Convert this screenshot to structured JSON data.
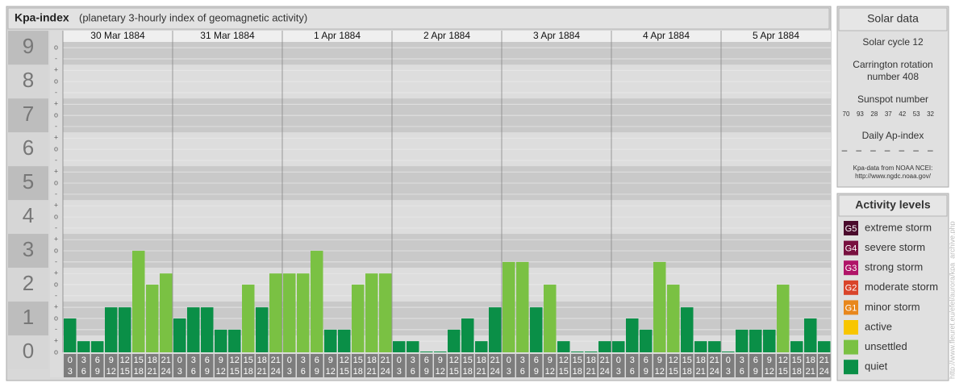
{
  "chart_data": {
    "type": "bar",
    "title": "Kpa-index",
    "subtitle": "(planetary 3-hourly index of geomagnetic activity)",
    "days": [
      "30 Mar 1884",
      "31 Mar 1884",
      "1 Apr 1884",
      "2 Apr 1884",
      "3 Apr 1884",
      "4 Apr 1884",
      "5 Apr 1884"
    ],
    "intervals": [
      [
        0,
        3
      ],
      [
        3,
        6
      ],
      [
        6,
        9
      ],
      [
        9,
        12
      ],
      [
        12,
        15
      ],
      [
        15,
        18
      ],
      [
        18,
        21
      ],
      [
        21,
        24
      ]
    ],
    "values": [
      1,
      0.33,
      0.33,
      1.33,
      1.33,
      3,
      2,
      2.33,
      1,
      1.33,
      1.33,
      0.67,
      0.67,
      2,
      1.33,
      2.33,
      2.33,
      2.33,
      3,
      0.67,
      0.67,
      2,
      2.33,
      2.33,
      0.33,
      0.33,
      0,
      0,
      0.67,
      1,
      0.33,
      1.33,
      2.67,
      2.67,
      1.33,
      2,
      0.33,
      0,
      0,
      0.33,
      0.33,
      1,
      0.67,
      2.67,
      2,
      1.33,
      0.33,
      0.33,
      0,
      0.67,
      0.67,
      0.67,
      2,
      0.33,
      1,
      0.33
    ],
    "bar_colors": [
      "#0a8f47",
      "#0a8f47",
      "#0a8f47",
      "#0a8f47",
      "#0a8f47",
      "#7ac143",
      "#7ac143",
      "#7ac143",
      "#0a8f47",
      "#0a8f47",
      "#0a8f47",
      "#0a8f47",
      "#0a8f47",
      "#7ac143",
      "#0a8f47",
      "#7ac143",
      "#7ac143",
      "#7ac143",
      "#7ac143",
      "#0a8f47",
      "#0a8f47",
      "#7ac143",
      "#7ac143",
      "#7ac143",
      "#0a8f47",
      "#0a8f47",
      "#0a8f47",
      "#0a8f47",
      "#0a8f47",
      "#0a8f47",
      "#0a8f47",
      "#0a8f47",
      "#7ac143",
      "#7ac143",
      "#0a8f47",
      "#7ac143",
      "#0a8f47",
      "#0a8f47",
      "#0a8f47",
      "#0a8f47",
      "#0a8f47",
      "#0a8f47",
      "#0a8f47",
      "#7ac143",
      "#7ac143",
      "#0a8f47",
      "#0a8f47",
      "#0a8f47",
      "#0a8f47",
      "#0a8f47",
      "#0a8f47",
      "#0a8f47",
      "#7ac143",
      "#0a8f47",
      "#0a8f47",
      "#0a8f47"
    ],
    "ylim": [
      0,
      9.17
    ],
    "yticks": [
      0,
      1,
      2,
      3,
      4,
      5,
      6,
      7,
      8,
      9
    ],
    "minor_yticks": [
      {
        "value": 0,
        "label": "o"
      },
      {
        "value": 0.33,
        "label": "+"
      },
      {
        "value": 0.67,
        "label": "-"
      },
      {
        "value": 1,
        "label": "o"
      },
      {
        "value": 1.33,
        "label": "+"
      },
      {
        "value": 1.67,
        "label": "-"
      },
      {
        "value": 2,
        "label": "o"
      },
      {
        "value": 2.33,
        "label": "+"
      },
      {
        "value": 2.67,
        "label": "-"
      },
      {
        "value": 3,
        "label": "o"
      },
      {
        "value": 3.33,
        "label": "+"
      },
      {
        "value": 3.67,
        "label": "-"
      },
      {
        "value": 4,
        "label": "o"
      },
      {
        "value": 4.33,
        "label": "+"
      },
      {
        "value": 4.67,
        "label": "-"
      },
      {
        "value": 5,
        "label": "o"
      },
      {
        "value": 5.33,
        "label": "+"
      },
      {
        "value": 5.67,
        "label": "-"
      },
      {
        "value": 6,
        "label": "o"
      },
      {
        "value": 6.33,
        "label": "+"
      },
      {
        "value": 6.67,
        "label": "-"
      },
      {
        "value": 7,
        "label": "o"
      },
      {
        "value": 7.33,
        "label": "+"
      },
      {
        "value": 7.67,
        "label": "-"
      },
      {
        "value": 8,
        "label": "o"
      },
      {
        "value": 8.33,
        "label": "+"
      },
      {
        "value": 8.67,
        "label": "-"
      },
      {
        "value": 9,
        "label": "o"
      }
    ],
    "grid": true
  },
  "solar_data": {
    "title": "Solar data",
    "cycle": "Solar cycle 12",
    "carrington": [
      "Carrington rotation",
      "number 408"
    ],
    "sunspot_label": "Sunspot number",
    "sunspot_numbers": [
      70,
      93,
      28,
      37,
      42,
      53,
      32
    ],
    "ap_label": "Daily Ap-index",
    "ap_values": [
      "–",
      "–",
      "–",
      "–",
      "–",
      "–",
      "–"
    ],
    "source": [
      "Kpa-data from NOAA NCEI:",
      "http://www.ngdc.noaa.gov/"
    ]
  },
  "activity_levels": {
    "title": "Activity levels",
    "items": [
      {
        "code": "G5",
        "name": "extreme storm",
        "color": "#4a0a2c"
      },
      {
        "code": "G4",
        "name": "severe storm",
        "color": "#78103f"
      },
      {
        "code": "G3",
        "name": "strong storm",
        "color": "#b01468"
      },
      {
        "code": "G2",
        "name": "moderate storm",
        "color": "#d9442a"
      },
      {
        "code": "G1",
        "name": "minor storm",
        "color": "#e8871c"
      },
      {
        "name": "active",
        "color": "#f8c600"
      },
      {
        "name": "unsettled",
        "color": "#7ac143"
      },
      {
        "name": "quiet",
        "color": "#0a8f47"
      }
    ]
  },
  "side_url": "http://www.fleuret.eu/efel/aurora/kpa_archive.php"
}
